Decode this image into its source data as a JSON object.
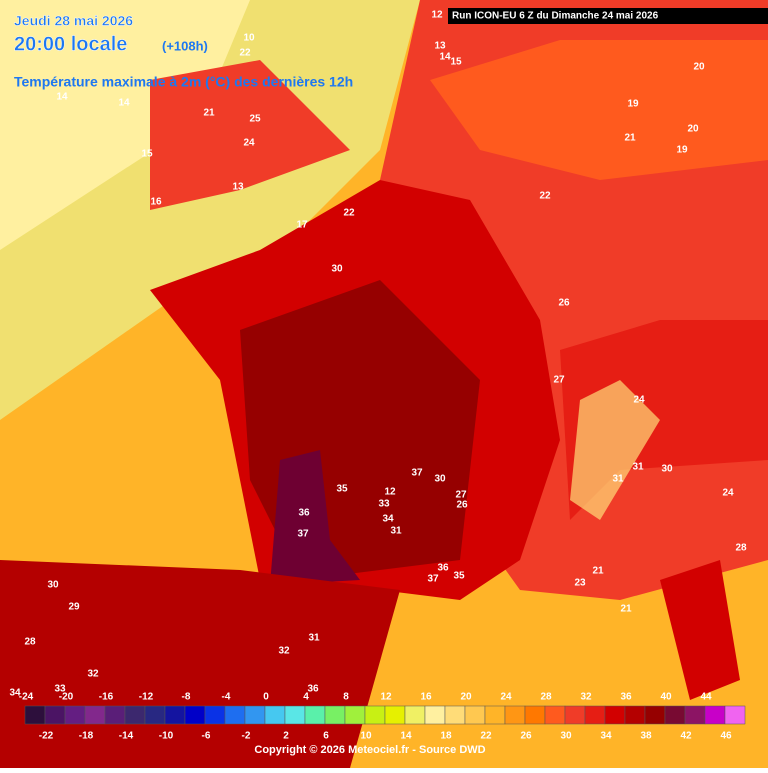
{
  "header": {
    "date": "Jeudi 28 mai 2026",
    "time": "20:00 locale",
    "lead": "(+108h)",
    "title": "Température maximale à 2m (°C) des dernières 12h",
    "run": "Run ICON-EU 6 Z du Dimanche 24 mai 2026"
  },
  "footer": {
    "copyright": "Copyright © 2026 Meteociel.fr - Source DWD"
  },
  "scale": {
    "top_labels": [
      -24,
      -20,
      -16,
      -12,
      -8,
      -4,
      0,
      4,
      8,
      12,
      16,
      20,
      24,
      28,
      32,
      36,
      40,
      44
    ],
    "bottom_labels": [
      -22,
      -18,
      -14,
      -10,
      -6,
      -2,
      2,
      6,
      10,
      14,
      18,
      22,
      26,
      30,
      34,
      38,
      42,
      46
    ],
    "colors": [
      "#2d0f3c",
      "#4b1464",
      "#641e82",
      "#82288c",
      "#5a1e78",
      "#3c286e",
      "#282882",
      "#1414a0",
      "#0000c8",
      "#0a32e6",
      "#1e6ef0",
      "#3296f0",
      "#46c8f0",
      "#5ae6e6",
      "#5af0aa",
      "#78f064",
      "#a0f03c",
      "#c8f014",
      "#e6f000",
      "#f0f064",
      "#fff0a0",
      "#ffdc78",
      "#ffc850",
      "#ffb428",
      "#ff9614",
      "#ff7800",
      "#ff5a1e",
      "#f03c28",
      "#e61e14",
      "#d20000",
      "#b40000",
      "#960000",
      "#780a32",
      "#8c1464",
      "#c800c8",
      "#f064f0"
    ]
  },
  "map_labels": [
    12,
    10,
    22,
    13,
    14,
    15,
    14,
    14,
    21,
    25,
    24,
    15,
    13,
    16,
    17,
    22,
    20,
    19,
    20,
    21,
    19,
    22,
    30,
    26,
    27,
    24,
    31,
    30,
    31,
    24,
    37,
    30,
    35,
    12,
    27,
    33,
    26,
    36,
    34,
    37,
    31,
    28,
    36,
    37,
    35,
    21,
    30,
    29,
    28,
    32,
    31,
    32,
    36,
    34,
    33,
    21,
    23
  ]
}
